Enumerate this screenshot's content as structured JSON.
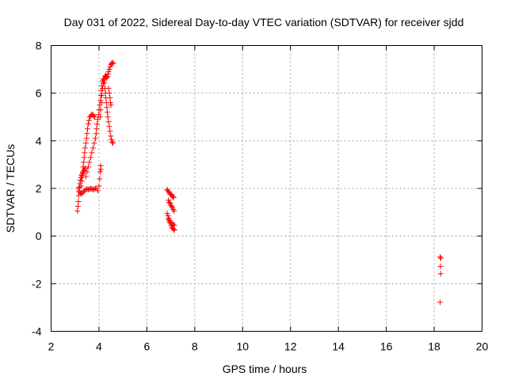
{
  "chart_data": {
    "type": "scatter",
    "title": "Day 031 of 2022, Sidereal Day-to-day VTEC variation (SDTVAR) for receiver sjdd",
    "xlabel": "GPS time / hours",
    "ylabel": "SDTVAR / TECUs",
    "xlim": [
      2,
      20
    ],
    "ylim": [
      -4,
      8
    ],
    "xticks": [
      2,
      4,
      6,
      8,
      10,
      12,
      14,
      16,
      18,
      20
    ],
    "yticks": [
      -4,
      -2,
      0,
      2,
      4,
      6,
      8
    ],
    "grid": true,
    "marker": "+",
    "colors": {
      "series": "#ff0000",
      "grid": "#a0a0a0",
      "frame": "#000000"
    },
    "series": [
      {
        "name": "sjdd",
        "points": [
          [
            3.1,
            1.05
          ],
          [
            3.12,
            1.25
          ],
          [
            3.14,
            1.45
          ],
          [
            3.15,
            1.7
          ],
          [
            3.17,
            1.9
          ],
          [
            3.18,
            2.05
          ],
          [
            3.2,
            2.2
          ],
          [
            3.22,
            2.35
          ],
          [
            3.25,
            2.45
          ],
          [
            3.28,
            2.55
          ],
          [
            3.3,
            2.6
          ],
          [
            3.33,
            2.65
          ],
          [
            3.35,
            2.7
          ],
          [
            3.38,
            2.75
          ],
          [
            3.4,
            2.8
          ],
          [
            3.42,
            2.85
          ],
          [
            3.15,
            2.0
          ],
          [
            3.18,
            1.85
          ],
          [
            3.22,
            1.8
          ],
          [
            3.26,
            1.78
          ],
          [
            3.3,
            1.8
          ],
          [
            3.35,
            1.85
          ],
          [
            3.4,
            1.9
          ],
          [
            3.45,
            1.95
          ],
          [
            3.5,
            1.98
          ],
          [
            3.55,
            1.95
          ],
          [
            3.6,
            1.97
          ],
          [
            3.65,
            2.0
          ],
          [
            3.7,
            1.98
          ],
          [
            3.75,
            1.95
          ],
          [
            3.8,
            1.97
          ],
          [
            3.85,
            2.0
          ],
          [
            3.9,
            2.0
          ],
          [
            3.25,
            2.1
          ],
          [
            3.28,
            2.3
          ],
          [
            3.3,
            2.5
          ],
          [
            3.32,
            2.7
          ],
          [
            3.34,
            2.9
          ],
          [
            3.36,
            3.1
          ],
          [
            3.38,
            3.3
          ],
          [
            3.4,
            3.5
          ],
          [
            3.42,
            3.7
          ],
          [
            3.45,
            3.9
          ],
          [
            3.48,
            4.1
          ],
          [
            3.5,
            4.3
          ],
          [
            3.52,
            4.5
          ],
          [
            3.55,
            4.7
          ],
          [
            3.58,
            4.85
          ],
          [
            3.62,
            5.0
          ],
          [
            3.66,
            5.05
          ],
          [
            3.7,
            5.1
          ],
          [
            3.74,
            5.1
          ],
          [
            3.78,
            5.05
          ],
          [
            3.82,
            5.0
          ],
          [
            3.45,
            2.5
          ],
          [
            3.5,
            2.7
          ],
          [
            3.55,
            2.9
          ],
          [
            3.6,
            3.1
          ],
          [
            3.65,
            3.3
          ],
          [
            3.7,
            3.5
          ],
          [
            3.75,
            3.7
          ],
          [
            3.8,
            3.9
          ],
          [
            3.85,
            4.1
          ],
          [
            3.88,
            4.3
          ],
          [
            3.9,
            4.5
          ],
          [
            3.92,
            4.7
          ],
          [
            3.95,
            4.9
          ],
          [
            3.98,
            5.1
          ],
          [
            4.0,
            5.3
          ],
          [
            4.03,
            5.5
          ],
          [
            4.06,
            5.7
          ],
          [
            4.08,
            5.9
          ],
          [
            4.1,
            6.1
          ],
          [
            4.12,
            6.3
          ],
          [
            4.15,
            6.5
          ],
          [
            4.18,
            6.6
          ],
          [
            4.2,
            6.55
          ],
          [
            4.22,
            6.45
          ],
          [
            3.95,
            1.9
          ],
          [
            4.0,
            2.1
          ],
          [
            4.03,
            2.4
          ],
          [
            4.05,
            2.7
          ],
          [
            4.07,
            2.95
          ],
          [
            4.08,
            2.8
          ],
          [
            4.05,
            5.0
          ],
          [
            4.07,
            5.3
          ],
          [
            4.1,
            5.6
          ],
          [
            4.12,
            5.9
          ],
          [
            4.15,
            6.2
          ],
          [
            4.18,
            6.4
          ],
          [
            4.22,
            6.6
          ],
          [
            4.25,
            6.7
          ],
          [
            4.28,
            6.75
          ],
          [
            4.3,
            6.7
          ],
          [
            4.33,
            6.65
          ],
          [
            4.36,
            6.7
          ],
          [
            4.38,
            6.8
          ],
          [
            4.4,
            6.9
          ],
          [
            4.43,
            7.0
          ],
          [
            4.46,
            7.1
          ],
          [
            4.5,
            7.2
          ],
          [
            4.53,
            7.25
          ],
          [
            4.56,
            7.28
          ],
          [
            4.6,
            7.25
          ],
          [
            4.25,
            6.2
          ],
          [
            4.27,
            6.0
          ],
          [
            4.29,
            5.8
          ],
          [
            4.31,
            5.6
          ],
          [
            4.33,
            5.4
          ],
          [
            4.35,
            5.2
          ],
          [
            4.37,
            5.0
          ],
          [
            4.4,
            4.8
          ],
          [
            4.43,
            4.6
          ],
          [
            4.46,
            4.4
          ],
          [
            4.49,
            4.2
          ],
          [
            4.52,
            4.05
          ],
          [
            4.55,
            3.95
          ],
          [
            4.58,
            3.9
          ],
          [
            4.4,
            6.2
          ],
          [
            4.43,
            6.0
          ],
          [
            4.46,
            5.8
          ],
          [
            4.48,
            5.6
          ],
          [
            4.5,
            5.5
          ],
          [
            6.85,
            1.95
          ],
          [
            6.88,
            1.9
          ],
          [
            6.92,
            1.85
          ],
          [
            6.95,
            1.8
          ],
          [
            6.98,
            1.75
          ],
          [
            7.02,
            1.75
          ],
          [
            7.05,
            1.7
          ],
          [
            7.08,
            1.65
          ],
          [
            7.12,
            1.62
          ],
          [
            6.9,
            1.5
          ],
          [
            6.93,
            1.42
          ],
          [
            6.97,
            1.38
          ],
          [
            7.0,
            1.3
          ],
          [
            7.03,
            1.25
          ],
          [
            7.07,
            1.2
          ],
          [
            7.1,
            1.12
          ],
          [
            7.14,
            1.05
          ],
          [
            6.85,
            0.95
          ],
          [
            6.88,
            0.85
          ],
          [
            6.92,
            0.75
          ],
          [
            6.95,
            0.65
          ],
          [
            6.98,
            0.55
          ],
          [
            7.02,
            0.45
          ],
          [
            7.05,
            0.38
          ],
          [
            7.08,
            0.32
          ],
          [
            7.12,
            0.28
          ],
          [
            7.15,
            0.25
          ],
          [
            6.9,
            0.7
          ],
          [
            6.95,
            0.6
          ],
          [
            7.0,
            0.55
          ],
          [
            7.05,
            0.55
          ],
          [
            7.1,
            0.5
          ],
          [
            7.14,
            0.45
          ],
          [
            18.25,
            -0.88
          ],
          [
            18.28,
            -0.93
          ],
          [
            18.26,
            -1.28
          ],
          [
            18.27,
            -1.58
          ],
          [
            18.25,
            -2.78
          ]
        ]
      }
    ]
  }
}
